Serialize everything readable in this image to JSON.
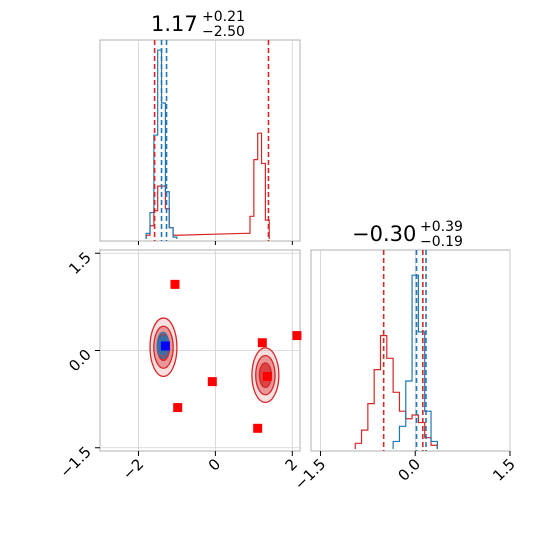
{
  "chart_data": [
    {
      "type": "histogram",
      "panel": "top-left",
      "title": {
        "value": "1.17",
        "plus": "+0.21",
        "minus": "−2.50"
      },
      "xlim": [
        -3.0,
        2.2
      ],
      "grid": true,
      "series": [
        {
          "color": "#d62728",
          "bins_x": [
            -1.75,
            -1.65,
            -1.55,
            -1.45,
            -1.35,
            -1.25,
            -1.15,
            -1.05,
            0.85,
            0.95,
            1.05,
            1.15,
            1.25,
            1.35
          ],
          "values": [
            0.02,
            0.07,
            0.15,
            0.28,
            0.28,
            0.16,
            0.06,
            0.02,
            0.03,
            0.12,
            0.42,
            0.56,
            0.4,
            0.1
          ]
        },
        {
          "color": "#1f77b4",
          "bins_x": [
            -1.75,
            -1.65,
            -1.55,
            -1.45,
            -1.35,
            -1.25,
            -1.15,
            -1.05
          ],
          "values": [
            0.03,
            0.14,
            0.55,
            1.0,
            0.72,
            0.25,
            0.06,
            0.01
          ]
        }
      ],
      "vlines": [
        {
          "x": -1.58,
          "color": "#d62728"
        },
        {
          "x": -1.4,
          "color": "#1f77b4"
        },
        {
          "x": -1.27,
          "color": "#1f77b4"
        },
        {
          "x": 1.38,
          "color": "#d62728"
        }
      ]
    },
    {
      "type": "histogram",
      "panel": "bottom-right",
      "title": {
        "value": "−0.30",
        "plus": "+0.39",
        "minus": "−0.19"
      },
      "xlim": [
        -1.65,
        1.5
      ],
      "xticks": [
        "−1.5",
        "0.0",
        "1.5"
      ],
      "xtick_values": [
        -1.5,
        0.0,
        1.5
      ],
      "grid": true,
      "series": [
        {
          "color": "#d62728",
          "bins_x": [
            -0.9,
            -0.8,
            -0.7,
            -0.6,
            -0.5,
            -0.4,
            -0.3,
            -0.2,
            -0.1,
            0.0,
            0.1,
            0.2,
            0.3
          ],
          "values": [
            0.03,
            0.1,
            0.24,
            0.42,
            0.6,
            0.48,
            0.3,
            0.2,
            0.16,
            0.18,
            0.14,
            0.06,
            0.02
          ]
        },
        {
          "color": "#1f77b4",
          "bins_x": [
            -0.3,
            -0.2,
            -0.1,
            0.0,
            0.1,
            0.2,
            0.3
          ],
          "values": [
            0.04,
            0.12,
            0.36,
            0.92,
            0.62,
            0.2,
            0.04
          ]
        }
      ],
      "vlines": [
        {
          "x": -0.5,
          "color": "#d62728"
        },
        {
          "x": 0.02,
          "color": "#1f77b4"
        },
        {
          "x": 0.12,
          "color": "#d62728"
        },
        {
          "x": 0.17,
          "color": "#1f77b4"
        }
      ]
    },
    {
      "type": "scatter-contour",
      "panel": "bottom-left",
      "xlim": [
        -3.0,
        2.2
      ],
      "ylim": [
        -1.55,
        1.55
      ],
      "xticks": [
        "−2",
        "0",
        "2"
      ],
      "xtick_values": [
        -2,
        0,
        2
      ],
      "yticks": [
        "−1.5",
        "0.0",
        "1.5"
      ],
      "ytick_values": [
        -1.5,
        0.0,
        1.5
      ],
      "grid": true,
      "contours": [
        {
          "color": "#d62728",
          "center": [
            -1.35,
            0.05
          ],
          "rx": 0.35,
          "ry": 0.45
        },
        {
          "color": "#1f77b4",
          "center": [
            -1.36,
            0.08
          ],
          "rx": 0.15,
          "ry": 0.2
        },
        {
          "color": "#d62728",
          "center": [
            1.3,
            -0.38
          ],
          "rx": 0.35,
          "ry": 0.42
        }
      ],
      "markers": [
        {
          "x": -1.3,
          "y": 0.07,
          "color": "#0000ff"
        },
        {
          "x": -1.05,
          "y": 1.02,
          "color": "#ff0000"
        },
        {
          "x": 1.22,
          "y": 0.12,
          "color": "#ff0000"
        },
        {
          "x": 2.12,
          "y": 0.23,
          "color": "#ff0000"
        },
        {
          "x": -0.08,
          "y": -0.48,
          "color": "#ff0000"
        },
        {
          "x": 1.35,
          "y": -0.4,
          "color": "#ff0000"
        },
        {
          "x": -0.98,
          "y": -0.88,
          "color": "#ff0000"
        },
        {
          "x": 1.1,
          "y": -1.2,
          "color": "#ff0000"
        }
      ]
    }
  ]
}
